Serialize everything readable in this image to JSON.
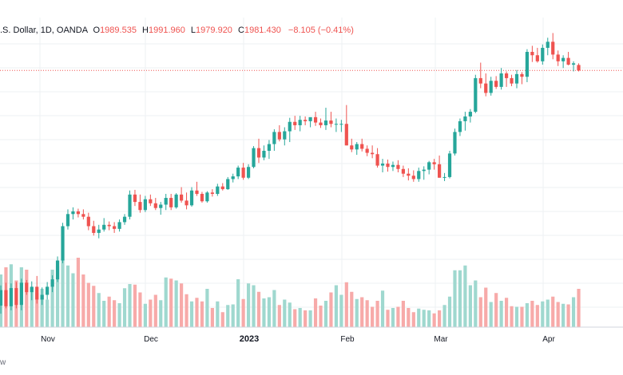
{
  "legend": {
    "symbol": ".S. Dollar, 1D, OANDA",
    "o_label": "O",
    "o_value": "1989.535",
    "h_label": "H",
    "h_value": "1991.960",
    "l_label": "L",
    "l_value": "1979.920",
    "c_label": "C",
    "c_value": "1981.430",
    "change": "−8.105 (−0.41%)"
  },
  "footer_text": "w",
  "colors": {
    "up": "#26a69a",
    "down": "#ef5350",
    "up_vol": "#9fd8cf",
    "down_vol": "#f7aaa9",
    "grid": "#eef0f3",
    "axis_text": "#131722"
  },
  "chart_data": {
    "type": "candlestick",
    "x_tick_labels": [
      "Nov",
      "Dec",
      "2023",
      "Feb",
      "Mar",
      "Apr"
    ],
    "ylim": [
      1600,
      2060
    ],
    "grid": true,
    "last_price_line": 1981.43,
    "candles": [
      [
        1632,
        1662,
        1620,
        1655,
        88
      ],
      [
        1655,
        1666,
        1628,
        1631,
        100
      ],
      [
        1631,
        1665,
        1625,
        1658,
        105
      ],
      [
        1658,
        1667,
        1628,
        1633,
        78
      ],
      [
        1633,
        1672,
        1625,
        1666,
        100
      ],
      [
        1666,
        1670,
        1648,
        1652,
        96
      ],
      [
        1652,
        1668,
        1640,
        1660,
        66
      ],
      [
        1660,
        1676,
        1635,
        1641,
        57
      ],
      [
        1641,
        1659,
        1633,
        1648,
        64
      ],
      [
        1648,
        1667,
        1641,
        1660,
        46
      ],
      [
        1660,
        1677,
        1652,
        1671,
        96
      ],
      [
        1671,
        1705,
        1667,
        1699,
        102
      ],
      [
        1699,
        1755,
        1695,
        1750,
        113
      ],
      [
        1750,
        1775,
        1745,
        1768,
        103
      ],
      [
        1768,
        1778,
        1760,
        1772,
        90
      ],
      [
        1772,
        1776,
        1763,
        1768,
        116
      ],
      [
        1768,
        1775,
        1760,
        1764,
        88
      ],
      [
        1764,
        1770,
        1744,
        1750,
        74
      ],
      [
        1750,
        1758,
        1736,
        1740,
        69
      ],
      [
        1740,
        1752,
        1732,
        1745,
        57
      ],
      [
        1745,
        1762,
        1742,
        1752,
        44
      ],
      [
        1752,
        1757,
        1744,
        1750,
        51
      ],
      [
        1750,
        1756,
        1740,
        1746,
        45
      ],
      [
        1746,
        1760,
        1742,
        1756,
        40
      ],
      [
        1756,
        1768,
        1752,
        1764,
        65
      ],
      [
        1764,
        1803,
        1760,
        1797,
        72
      ],
      [
        1797,
        1804,
        1780,
        1786,
        71
      ],
      [
        1786,
        1797,
        1770,
        1774,
        58
      ],
      [
        1774,
        1795,
        1771,
        1790,
        39
      ],
      [
        1790,
        1797,
        1780,
        1784,
        46
      ],
      [
        1784,
        1792,
        1774,
        1777,
        54
      ],
      [
        1777,
        1786,
        1767,
        1782,
        45
      ],
      [
        1782,
        1798,
        1774,
        1792,
        83
      ],
      [
        1792,
        1798,
        1774,
        1778,
        81
      ],
      [
        1778,
        1799,
        1776,
        1797,
        78
      ],
      [
        1797,
        1808,
        1785,
        1788,
        73
      ],
      [
        1788,
        1800,
        1775,
        1781,
        55
      ],
      [
        1781,
        1808,
        1779,
        1803,
        43
      ],
      [
        1803,
        1816,
        1795,
        1798,
        49
      ],
      [
        1798,
        1801,
        1785,
        1787,
        43
      ],
      [
        1787,
        1802,
        1785,
        1800,
        64
      ],
      [
        1800,
        1805,
        1794,
        1798,
        32
      ],
      [
        1798,
        1813,
        1795,
        1809,
        43
      ],
      [
        1809,
        1814,
        1803,
        1805,
        25
      ],
      [
        1805,
        1823,
        1804,
        1820,
        37
      ],
      [
        1820,
        1828,
        1815,
        1824,
        38
      ],
      [
        1824,
        1840,
        1820,
        1837,
        80
      ],
      [
        1837,
        1844,
        1819,
        1822,
        47
      ],
      [
        1822,
        1842,
        1820,
        1838,
        73
      ],
      [
        1838,
        1869,
        1836,
        1866,
        70
      ],
      [
        1866,
        1880,
        1844,
        1852,
        59
      ],
      [
        1852,
        1870,
        1848,
        1862,
        48
      ],
      [
        1862,
        1878,
        1850,
        1872,
        50
      ],
      [
        1872,
        1894,
        1862,
        1890,
        62
      ],
      [
        1890,
        1900,
        1876,
        1879,
        37
      ],
      [
        1879,
        1897,
        1870,
        1891,
        46
      ],
      [
        1891,
        1911,
        1875,
        1905,
        41
      ],
      [
        1905,
        1914,
        1893,
        1900,
        30
      ],
      [
        1900,
        1914,
        1891,
        1908,
        32
      ],
      [
        1908,
        1913,
        1900,
        1906,
        28
      ],
      [
        1906,
        1911,
        1897,
        1912,
        28
      ],
      [
        1912,
        1920,
        1899,
        1904,
        48
      ],
      [
        1904,
        1910,
        1896,
        1900,
        36
      ],
      [
        1900,
        1926,
        1893,
        1907,
        44
      ],
      [
        1907,
        1920,
        1897,
        1902,
        58
      ],
      [
        1902,
        1910,
        1890,
        1902,
        70
      ],
      [
        1902,
        1908,
        1890,
        1902,
        54
      ],
      [
        1902,
        1930,
        1870,
        1870,
        75
      ],
      [
        1870,
        1880,
        1860,
        1864,
        59
      ],
      [
        1864,
        1875,
        1856,
        1872,
        47
      ],
      [
        1872,
        1880,
        1861,
        1865,
        50
      ],
      [
        1865,
        1870,
        1854,
        1859,
        45
      ],
      [
        1859,
        1870,
        1851,
        1857,
        34
      ],
      [
        1857,
        1866,
        1837,
        1840,
        44
      ],
      [
        1840,
        1850,
        1830,
        1843,
        61
      ],
      [
        1843,
        1849,
        1831,
        1838,
        29
      ],
      [
        1838,
        1846,
        1832,
        1841,
        32
      ],
      [
        1841,
        1848,
        1830,
        1835,
        34
      ],
      [
        1835,
        1840,
        1823,
        1828,
        44
      ],
      [
        1828,
        1836,
        1818,
        1825,
        32
      ],
      [
        1825,
        1833,
        1816,
        1820,
        25
      ],
      [
        1820,
        1837,
        1816,
        1832,
        31
      ],
      [
        1832,
        1839,
        1819,
        1834,
        29
      ],
      [
        1834,
        1847,
        1827,
        1845,
        28
      ],
      [
        1845,
        1850,
        1834,
        1842,
        23
      ],
      [
        1842,
        1855,
        1822,
        1822,
        28
      ],
      [
        1822,
        1829,
        1817,
        1823,
        37
      ],
      [
        1823,
        1862,
        1821,
        1858,
        51
      ],
      [
        1858,
        1895,
        1855,
        1890,
        95
      ],
      [
        1890,
        1910,
        1884,
        1906,
        95
      ],
      [
        1906,
        1920,
        1892,
        1913,
        103
      ],
      [
        1913,
        1924,
        1904,
        1920,
        70
      ],
      [
        1920,
        1975,
        1918,
        1970,
        78
      ],
      [
        1970,
        1993,
        1955,
        1962,
        50
      ],
      [
        1962,
        1977,
        1943,
        1948,
        66
      ],
      [
        1948,
        1972,
        1944,
        1966,
        42
      ],
      [
        1966,
        1973,
        1954,
        1957,
        57
      ],
      [
        1957,
        1985,
        1953,
        1977,
        44
      ],
      [
        1977,
        1980,
        1957,
        1970,
        49
      ],
      [
        1970,
        1975,
        1958,
        1962,
        35
      ],
      [
        1962,
        1982,
        1955,
        1976,
        34
      ],
      [
        1976,
        1979,
        1961,
        1972,
        34
      ],
      [
        1972,
        2013,
        1964,
        2009,
        40
      ],
      [
        2009,
        2018,
        1994,
        2004,
        44
      ],
      [
        2004,
        2015,
        1993,
        1995,
        37
      ],
      [
        1995,
        2020,
        1990,
        2015,
        43
      ],
      [
        2015,
        2030,
        2004,
        2024,
        46
      ],
      [
        2024,
        2037,
        1998,
        2005,
        51
      ],
      [
        2005,
        2011,
        1988,
        1995,
        42
      ],
      [
        1995,
        2004,
        1985,
        2000,
        39
      ],
      [
        2000,
        2009,
        1989,
        1990,
        38
      ],
      [
        1990,
        1995,
        1980,
        1992,
        50
      ],
      [
        1989.535,
        1991.96,
        1979.92,
        1981.43,
        64
      ]
    ]
  }
}
